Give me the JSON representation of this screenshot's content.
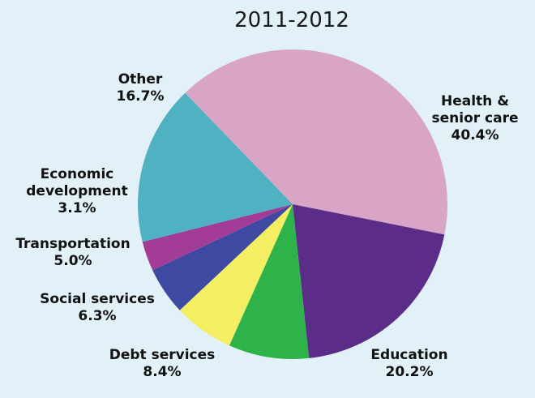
{
  "chart_data": {
    "type": "pie",
    "title": "2011-2012",
    "slices": [
      {
        "label": [
          "Health &",
          "senior care"
        ],
        "pct": "40.4%",
        "value": 40.4,
        "color": "#d8a5c7"
      },
      {
        "label": [
          "Education"
        ],
        "pct": "20.2%",
        "value": 20.2,
        "color": "#5b2d88"
      },
      {
        "label": [
          "Debt services"
        ],
        "pct": "8.4%",
        "value": 8.4,
        "color": "#2db34a"
      },
      {
        "label": [
          "Social services"
        ],
        "pct": "6.3%",
        "value": 6.3,
        "color": "#f3ee62"
      },
      {
        "label": [
          "Transportation"
        ],
        "pct": "5.0%",
        "value": 5.0,
        "color": "#3e4aa2"
      },
      {
        "label": [
          "Economic",
          "development"
        ],
        "pct": "3.1%",
        "value": 3.1,
        "color": "#a23c97"
      },
      {
        "label": [
          "Other"
        ],
        "pct": "16.7%",
        "value": 16.7,
        "color": "#4fb1c1"
      }
    ]
  }
}
